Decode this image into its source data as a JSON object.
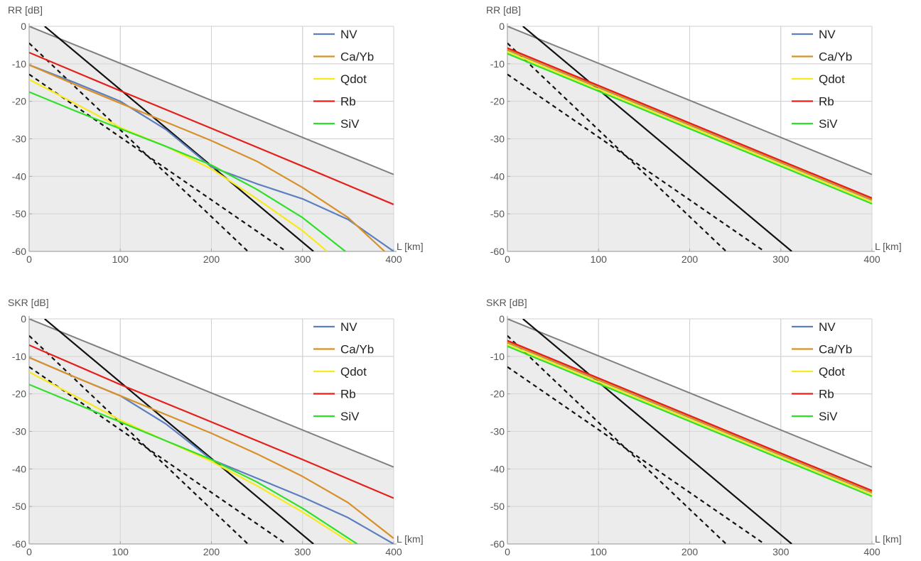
{
  "chart_data": [
    {
      "type": "line",
      "ylabel": "RR [dB]",
      "xlabel": "L [km]",
      "xlim": [
        0,
        400
      ],
      "ylim": [
        -60,
        0
      ],
      "xticks": [
        "0",
        "100",
        "200",
        "300",
        "400"
      ],
      "yticks": [
        "0",
        "-10",
        "-20",
        "-30",
        "-40",
        "-50",
        "-60"
      ],
      "grid": true,
      "legend_position": "top-right",
      "shaded_region": {
        "x": [
          0,
          400
        ],
        "upper": [
          0,
          -39.5
        ],
        "lower": [
          -60,
          -60
        ]
      },
      "bound_line": {
        "x": [
          0,
          400
        ],
        "y": [
          0,
          -39.5
        ]
      },
      "reference_lines": [
        {
          "style": "solid",
          "x": [
            17,
            312
          ],
          "y": [
            0,
            -60
          ]
        },
        {
          "style": "dashed",
          "x": [
            0,
            240
          ],
          "y": [
            -4.5,
            -60
          ]
        },
        {
          "style": "dashed",
          "x": [
            0,
            282
          ],
          "y": [
            -12.8,
            -60
          ]
        }
      ],
      "series": [
        {
          "name": "NV",
          "x": [
            0,
            50,
            100,
            150,
            200,
            250,
            300,
            350,
            400
          ],
          "y": [
            -10.3,
            -15,
            -20,
            -27.5,
            -37.5,
            -42,
            -46,
            -51.5,
            -60
          ]
        },
        {
          "name": "Ca/Yb",
          "x": [
            0,
            50,
            100,
            150,
            200,
            250,
            300,
            350,
            390
          ],
          "y": [
            -10.3,
            -15.5,
            -20.5,
            -25.5,
            -30.5,
            -36,
            -43,
            -51,
            -60
          ]
        },
        {
          "name": "Qdot",
          "x": [
            0,
            50,
            100,
            150,
            200,
            250,
            300,
            327
          ],
          "y": [
            -14.2,
            -20.5,
            -27,
            -32,
            -38,
            -46,
            -54.5,
            -60
          ]
        },
        {
          "name": "Rb",
          "x": [
            0,
            100,
            200,
            300,
            400
          ],
          "y": [
            -7,
            -17.2,
            -27.2,
            -37.3,
            -47.5
          ]
        },
        {
          "name": "SiV",
          "x": [
            0,
            50,
            100,
            150,
            200,
            250,
            300,
            347
          ],
          "y": [
            -17.5,
            -22.5,
            -27.3,
            -32,
            -37,
            -43.5,
            -51,
            -60
          ]
        }
      ]
    },
    {
      "type": "line",
      "ylabel": "RR [dB]",
      "xlabel": "L [km]",
      "xlim": [
        0,
        400
      ],
      "ylim": [
        -60,
        0
      ],
      "xticks": [
        "0",
        "100",
        "200",
        "300",
        "400"
      ],
      "yticks": [
        "0",
        "-10",
        "-20",
        "-30",
        "-40",
        "-50",
        "-60"
      ],
      "grid": true,
      "legend_position": "top-right",
      "shaded_region": {
        "x": [
          0,
          400
        ],
        "upper": [
          0,
          -39.5
        ],
        "lower": [
          -60,
          -60
        ]
      },
      "bound_line": {
        "x": [
          0,
          400
        ],
        "y": [
          0,
          -39.5
        ]
      },
      "reference_lines": [
        {
          "style": "solid",
          "x": [
            17,
            312
          ],
          "y": [
            0,
            -60
          ]
        },
        {
          "style": "dashed",
          "x": [
            0,
            240
          ],
          "y": [
            -4.5,
            -60
          ]
        },
        {
          "style": "dashed",
          "x": [
            0,
            282
          ],
          "y": [
            -12.8,
            -60
          ]
        }
      ],
      "series": [
        {
          "name": "NV",
          "x": [
            0,
            400
          ],
          "y": [
            -6.3,
            -46.3
          ]
        },
        {
          "name": "Ca/Yb",
          "x": [
            0,
            400
          ],
          "y": [
            -6.2,
            -46.2
          ]
        },
        {
          "name": "Qdot",
          "x": [
            0,
            400
          ],
          "y": [
            -6.8,
            -46.8
          ]
        },
        {
          "name": "Rb",
          "x": [
            0,
            400
          ],
          "y": [
            -5.8,
            -45.8
          ]
        },
        {
          "name": "SiV",
          "x": [
            0,
            400
          ],
          "y": [
            -7.3,
            -47.3
          ]
        }
      ]
    },
    {
      "type": "line",
      "ylabel": "SKR [dB]",
      "xlabel": "L [km]",
      "xlim": [
        0,
        400
      ],
      "ylim": [
        -60,
        0
      ],
      "xticks": [
        "0",
        "100",
        "200",
        "300",
        "400"
      ],
      "yticks": [
        "0",
        "-10",
        "-20",
        "-30",
        "-40",
        "-50",
        "-60"
      ],
      "grid": true,
      "legend_position": "top-right",
      "shaded_region": {
        "x": [
          0,
          400
        ],
        "upper": [
          0,
          -39.5
        ],
        "lower": [
          -60,
          -60
        ]
      },
      "bound_line": {
        "x": [
          0,
          400
        ],
        "y": [
          0,
          -39.5
        ]
      },
      "reference_lines": [
        {
          "style": "solid",
          "x": [
            17,
            312
          ],
          "y": [
            0,
            -60
          ]
        },
        {
          "style": "dashed",
          "x": [
            0,
            240
          ],
          "y": [
            -4.5,
            -60
          ]
        },
        {
          "style": "dashed",
          "x": [
            0,
            282
          ],
          "y": [
            -12.8,
            -60
          ]
        }
      ],
      "series": [
        {
          "name": "NV",
          "x": [
            0,
            50,
            100,
            150,
            200,
            250,
            300,
            350,
            400
          ],
          "y": [
            -10.3,
            -15.5,
            -20.5,
            -28,
            -37.5,
            -42.5,
            -47.5,
            -53,
            -60
          ]
        },
        {
          "name": "Ca/Yb",
          "x": [
            0,
            50,
            100,
            150,
            200,
            250,
            300,
            350,
            400
          ],
          "y": [
            -10.3,
            -15.5,
            -20.5,
            -25.5,
            -30.5,
            -36,
            -42,
            -49,
            -58.5
          ]
        },
        {
          "name": "Qdot",
          "x": [
            0,
            50,
            100,
            150,
            200,
            250,
            300,
            355
          ],
          "y": [
            -14.2,
            -20.5,
            -27,
            -32.5,
            -38,
            -44.5,
            -51.5,
            -60
          ]
        },
        {
          "name": "Rb",
          "x": [
            0,
            100,
            200,
            300,
            400
          ],
          "y": [
            -7,
            -17.5,
            -27.5,
            -37.5,
            -47.8
          ]
        },
        {
          "name": "SiV",
          "x": [
            0,
            50,
            100,
            150,
            200,
            250,
            300,
            360
          ],
          "y": [
            -17.5,
            -22.5,
            -27.5,
            -32.5,
            -37.5,
            -43.5,
            -50.5,
            -60
          ]
        }
      ]
    },
    {
      "type": "line",
      "ylabel": "SKR [dB]",
      "xlabel": "L [km]",
      "xlim": [
        0,
        400
      ],
      "ylim": [
        -60,
        0
      ],
      "xticks": [
        "0",
        "100",
        "200",
        "300",
        "400"
      ],
      "yticks": [
        "0",
        "-10",
        "-20",
        "-30",
        "-40",
        "-50",
        "-60"
      ],
      "grid": true,
      "legend_position": "top-right",
      "shaded_region": {
        "x": [
          0,
          400
        ],
        "upper": [
          0,
          -39.5
        ],
        "lower": [
          -60,
          -60
        ]
      },
      "bound_line": {
        "x": [
          0,
          400
        ],
        "y": [
          0,
          -39.5
        ]
      },
      "reference_lines": [
        {
          "style": "solid",
          "x": [
            17,
            312
          ],
          "y": [
            0,
            -60
          ]
        },
        {
          "style": "dashed",
          "x": [
            0,
            240
          ],
          "y": [
            -4.5,
            -60
          ]
        },
        {
          "style": "dashed",
          "x": [
            0,
            282
          ],
          "y": [
            -12.8,
            -60
          ]
        }
      ],
      "series": [
        {
          "name": "NV",
          "x": [
            0,
            400
          ],
          "y": [
            -6.3,
            -46.3
          ]
        },
        {
          "name": "Ca/Yb",
          "x": [
            0,
            400
          ],
          "y": [
            -6.2,
            -46.2
          ]
        },
        {
          "name": "Qdot",
          "x": [
            0,
            400
          ],
          "y": [
            -6.8,
            -46.8
          ]
        },
        {
          "name": "Rb",
          "x": [
            0,
            400
          ],
          "y": [
            -5.8,
            -45.8
          ]
        },
        {
          "name": "SiV",
          "x": [
            0,
            400
          ],
          "y": [
            -7.3,
            -47.3
          ]
        }
      ]
    }
  ],
  "colors": {
    "NV": "#5b7fbf",
    "Ca/Yb": "#d8912a",
    "Qdot": "#f7ea1c",
    "Rb": "#e5201c",
    "SiV": "#2fe02a",
    "shade": "#e6e6e6",
    "bound_line": "#808080",
    "reference_line": "#111111",
    "grid": "#cfcfcf",
    "axis": "#a6a6a6",
    "tick_text": "#555555"
  }
}
